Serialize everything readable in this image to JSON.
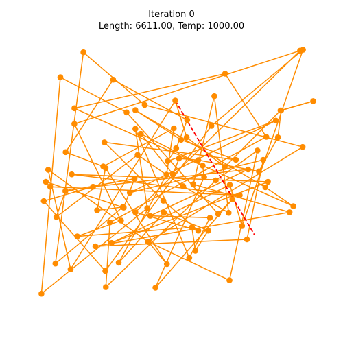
{
  "chart_data": {
    "type": "line",
    "title_lines": [
      "Iteration 0",
      "Length: 6611.00, Temp: 1000.00"
    ],
    "xlabel": "",
    "ylabel": "",
    "xlim": [
      0,
      100
    ],
    "ylim": [
      0,
      100
    ],
    "axes_visible": false,
    "grid": false,
    "legend": "none",
    "colors": {
      "tour": "#ff8c00",
      "swap": "#ff0000"
    },
    "series": [
      {
        "style": "solid-with-markers",
        "color": "#ff8c00",
        "closed": true,
        "x": [
          50.7,
          54.6,
          67.7,
          86.8,
          98.0,
          87.0,
          85.9,
          79.4,
          58.6,
          52.0,
          49.9,
          38.9,
          60.1,
          60.6,
          43.9,
          70.3,
          65.4,
          34.0,
          11.3,
          4.8,
          41.1,
          37.0,
          55.5,
          62.6,
          42.1,
          75.7,
          22.5,
          5.6,
          26.7,
          63.1,
          94.5,
          73.6,
          69.4,
          28.9,
          82.5,
          15.2,
          72.8,
          7.8,
          6.3,
          33.0,
          36.7,
          13.0,
          9.9,
          37.8,
          53.4,
          69.0,
          64.1,
          56.9,
          89.9,
          23.3,
          75.3,
          80.9,
          35.1,
          85.2,
          48.1,
          51.0,
          54.8,
          29.4,
          13.1,
          26.0,
          50.2,
          47.7,
          31.3,
          46.8,
          62.0,
          57.6,
          56.4,
          17.1,
          32.1,
          16.1,
          93.5,
          37.0,
          58.6,
          46.6,
          26.4,
          71.5,
          52.7,
          37.0,
          81.6,
          91.2,
          16.1,
          67.8,
          81.9,
          28.3,
          26.9,
          64.6,
          78.9,
          69.3,
          41.5,
          47.8,
          26.8,
          23.9,
          32.7,
          9.6,
          19.2,
          40.2,
          94.4,
          41.4,
          7.1,
          14.8
        ],
        "y": [
          79.6,
          66.2,
          55.4,
          76.0,
          79.4,
          76.0,
          66.2,
          53.8,
          57.9,
          58.5,
          52.7,
          67.5,
          55.9,
          51.7,
          11.4,
          43.6,
          38.3,
          75.3,
          88.1,
          9.2,
          40.4,
          69.3,
          22.3,
          36.9,
          37.6,
          54.5,
          48.2,
          43.0,
          17.5,
          70.4,
          98.1,
          33.9,
          48.9,
          27.7,
          50.0,
          52.7,
          45.1,
          48.2,
          50.0,
          40.6,
          51.1,
          46.6,
          37.2,
          59.8,
          48.4,
          38.7,
          81.2,
          49.1,
          38.9,
          26.5,
          29.0,
          58.0,
          46.0,
          72.3,
          57.5,
          62.2,
          72.5,
          87.2,
          60.8,
          55.6,
          69.5,
          52.6,
          20.5,
          38.8,
          32.2,
          24.9,
          33.4,
          30.1,
          35.9,
          71.1,
          97.8,
          38.9,
          32.2,
          43.1,
          64.4,
          58.0,
          65.3,
          76.1,
          48.0,
          41.1,
          76.8,
          89.4,
          66.4,
          35.2,
          11.6,
          50.5,
          61.4,
          14.1,
          28.1,
          20.0,
          55.0,
          39.6,
          40.8,
          20.2,
          97.2,
          78.0,
          62.7,
          28.1,
          54.4,
          18.1
        ]
      },
      {
        "style": "dashed",
        "color": "#ff0000",
        "x": [
          50.7,
          77.9
        ],
        "y": [
          79.6,
          30.6
        ]
      }
    ]
  }
}
